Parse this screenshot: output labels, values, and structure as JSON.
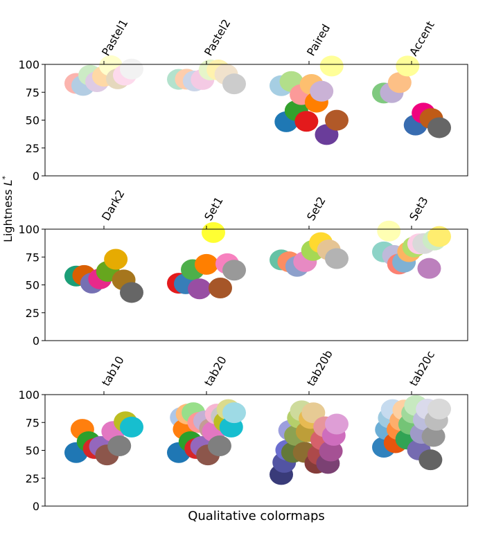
{
  "chart_data": {
    "type": "scatter",
    "ylabel": "Lightness L*",
    "xlabel": "Qualitative colormaps",
    "ylim": [
      0,
      100
    ],
    "yticks": [
      0,
      25,
      50,
      75,
      100
    ],
    "grid": false,
    "panels": [
      {
        "colormaps": [
          {
            "name": "Pastel1",
            "colors": [
              "#fbb4ae",
              "#b3cde3",
              "#ccebc5",
              "#decbe4",
              "#fed9a6",
              "#ffffcc",
              "#e5d8bd",
              "#fddaec",
              "#f2f2f2"
            ],
            "L": [
              82.9,
              81.1,
              90.2,
              84.5,
              89.4,
              98.8,
              87.0,
              90.4,
              95.8
            ]
          },
          {
            "name": "Pastel2",
            "colors": [
              "#b3e2cd",
              "#fdcdac",
              "#cbd5e8",
              "#f4cae4",
              "#e6f5c9",
              "#fff2ae",
              "#f1e2cc",
              "#cccccc"
            ],
            "L": [
              86.6,
              86.7,
              85.1,
              86.4,
              95.0,
              95.0,
              91.0,
              82.5
            ]
          },
          {
            "name": "Paired",
            "colors": [
              "#a6cee3",
              "#1f78b4",
              "#b2df8a",
              "#33a02c",
              "#fb9a99",
              "#e31a1c",
              "#fdbf6f",
              "#ff7f00",
              "#cab2d6",
              "#6a3d9a",
              "#ffff99",
              "#b15928"
            ],
            "L": [
              80.9,
              48.5,
              84.6,
              58.5,
              72.9,
              48.9,
              82.0,
              66.1,
              75.9,
              37.0,
              98.5,
              49.9
            ]
          },
          {
            "name": "Accent",
            "colors": [
              "#7fc97f",
              "#beaed4",
              "#fdc086",
              "#ffff99",
              "#386cb0",
              "#f0027f",
              "#bf5b17",
              "#666666"
            ],
            "L": [
              74.3,
              74.7,
              83.7,
              98.5,
              45.6,
              56.3,
              51.4,
              43.2
            ]
          }
        ]
      },
      {
        "colormaps": [
          {
            "name": "Dark2",
            "colors": [
              "#1b9e77",
              "#d95f02",
              "#7570b3",
              "#e7298a",
              "#66a61e",
              "#e6ab02",
              "#a6761d",
              "#666666"
            ],
            "L": [
              57.9,
              58.5,
              51.6,
              55.4,
              62.1,
              73.0,
              54.4,
              43.2
            ]
          },
          {
            "name": "Set1",
            "colors": [
              "#e41a1c",
              "#377eb8",
              "#4daf4a",
              "#984ea3",
              "#ff7f00",
              "#ffff33",
              "#a65628",
              "#f781bf",
              "#999999"
            ],
            "L": [
              51.5,
              51.0,
              63.7,
              46.4,
              68.4,
              97.0,
              47.2,
              69.0,
              63.2
            ]
          },
          {
            "name": "Set2",
            "colors": [
              "#66c2a5",
              "#fc8d62",
              "#8da0cb",
              "#e78ac3",
              "#a6d854",
              "#ffd92f",
              "#e5c494",
              "#b3b3b3"
            ],
            "L": [
              72.4,
              70.7,
              66.6,
              70.9,
              80.9,
              87.9,
              81.4,
              73.6
            ]
          },
          {
            "name": "Set3",
            "colors": [
              "#8dd3c7",
              "#ffffb3",
              "#bebada",
              "#fb8072",
              "#80b1d3",
              "#fdb462",
              "#b3de69",
              "#fccde5",
              "#d9d9d9",
              "#bc80bd",
              "#ccebc5",
              "#ffed6f"
            ],
            "L": [
              79.6,
              98.3,
              76.4,
              68.7,
              70.4,
              79.8,
              84.0,
              86.8,
              87.1,
              64.8,
              90.2,
              93.4
            ]
          }
        ]
      },
      {
        "colormaps": [
          {
            "name": "tab10",
            "colors": [
              "#1f77b4",
              "#ff7f0e",
              "#2ca02c",
              "#d62728",
              "#9467bd",
              "#8c564b",
              "#e377c2",
              "#7f7f7f",
              "#bcbd22",
              "#17becf"
            ],
            "L": [
              48.0,
              68.9,
              57.8,
              51.6,
              53.5,
              45.9,
              66.9,
              54.0,
              75.6,
              70.9
            ]
          },
          {
            "name": "tab20",
            "colors": [
              "#1f77b4",
              "#aec7e8",
              "#ff7f0e",
              "#ffbb78",
              "#2ca02c",
              "#98df8a",
              "#d62728",
              "#ff9896",
              "#9467bd",
              "#c5b0d5",
              "#8c564b",
              "#c49c94",
              "#e377c2",
              "#f7b6d2",
              "#7f7f7f",
              "#c7c7c7",
              "#bcbd22",
              "#dbdb8d",
              "#17becf",
              "#9edae5"
            ],
            "L": [
              48.0,
              79.5,
              68.9,
              82.5,
              57.8,
              83.8,
              51.6,
              75.1,
              53.5,
              76.4,
              45.9,
              69.5,
              66.9,
              82.5,
              54.0,
              80.6,
              75.6,
              86.6,
              70.9,
              83.8
            ]
          },
          {
            "name": "tab20b",
            "colors": [
              "#393b79",
              "#5254a3",
              "#6b6ecf",
              "#9c9ede",
              "#637939",
              "#8ca252",
              "#b5cf6b",
              "#cedb9c",
              "#8c6d31",
              "#bd9e39",
              "#e7ba52",
              "#e7cb94",
              "#843c39",
              "#ad494a",
              "#d6616b",
              "#e7969c",
              "#7b4173",
              "#a55194",
              "#ce6dbd",
              "#de9ed6"
            ],
            "L": [
              28.3,
              39.2,
              50.2,
              67.9,
              48.2,
              63.4,
              79.1,
              85.5,
              48.2,
              66.7,
              78.6,
              83.7,
              38.4,
              46.1,
              59.5,
              71.1,
              38.3,
              49.4,
              63.4,
              73.6
            ]
          },
          {
            "name": "tab20c",
            "colors": [
              "#3182bd",
              "#6baed6",
              "#9ecae1",
              "#c6dbef",
              "#e6550d",
              "#fd8d3c",
              "#fdae6b",
              "#fdd0a2",
              "#31a354",
              "#74c476",
              "#a1d99b",
              "#c7e9c0",
              "#756bb1",
              "#9e9ac8",
              "#bcbddc",
              "#dadaeb",
              "#636363",
              "#969696",
              "#bdbdbd",
              "#d9d9d9"
            ],
            "L": [
              52.8,
              68.6,
              79.1,
              86.6,
              56.8,
              68.7,
              76.8,
              86.2,
              60.1,
              73.4,
              83.5,
              90.2,
              50.4,
              65.2,
              77.3,
              87.0,
              41.5,
              62.5,
              77.0,
              87.1
            ]
          }
        ]
      }
    ]
  }
}
